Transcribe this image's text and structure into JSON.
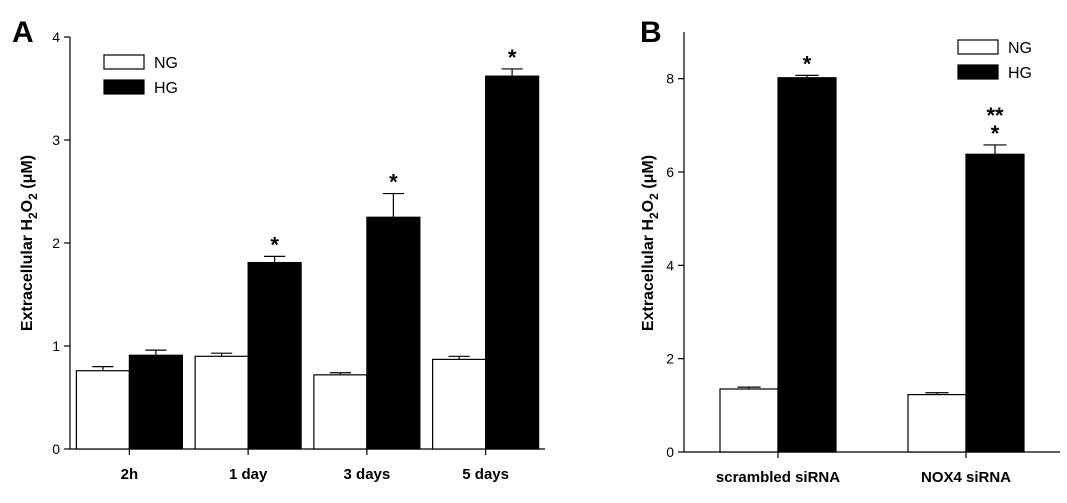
{
  "chart_data": [
    {
      "panel": "A",
      "type": "bar",
      "ylabel_parts": [
        "Extracellular H",
        "2",
        "O",
        "2",
        " (",
        "μ",
        "M)"
      ],
      "ylim": [
        0,
        4
      ],
      "yticks": [
        "0",
        "1",
        "2",
        "3",
        "4"
      ],
      "categories": [
        "2h",
        "1 day",
        "3 days",
        "5 days"
      ],
      "series": [
        {
          "name": "NG",
          "color": "#ffffff",
          "values": [
            0.76,
            0.9,
            0.72,
            0.87
          ],
          "errors": [
            0.04,
            0.03,
            0.02,
            0.03
          ]
        },
        {
          "name": "HG",
          "color": "#000000",
          "values": [
            0.91,
            1.81,
            2.25,
            3.62
          ],
          "errors": [
            0.05,
            0.06,
            0.23,
            0.07
          ]
        }
      ],
      "annotations": [
        "",
        "*",
        "*",
        "*"
      ],
      "legend_position": "top-left"
    },
    {
      "panel": "B",
      "type": "bar",
      "ylabel_parts": [
        "Extracellular H",
        "2",
        "O",
        "2",
        " (",
        "μ",
        "M)"
      ],
      "ylim": [
        0,
        9
      ],
      "yticks": [
        "0",
        "2",
        "4",
        "6",
        "8"
      ],
      "categories": [
        "scrambled siRNA",
        "NOX4 siRNA"
      ],
      "series": [
        {
          "name": "NG",
          "color": "#ffffff",
          "values": [
            1.35,
            1.23
          ],
          "errors": [
            0.04,
            0.04
          ]
        },
        {
          "name": "HG",
          "color": "#000000",
          "values": [
            8.02,
            6.38
          ],
          "errors": [
            0.05,
            0.2
          ]
        }
      ],
      "annotations": [
        "*",
        "*"
      ],
      "annotations_upper": [
        "",
        "**"
      ],
      "legend_position": "top-right"
    }
  ]
}
